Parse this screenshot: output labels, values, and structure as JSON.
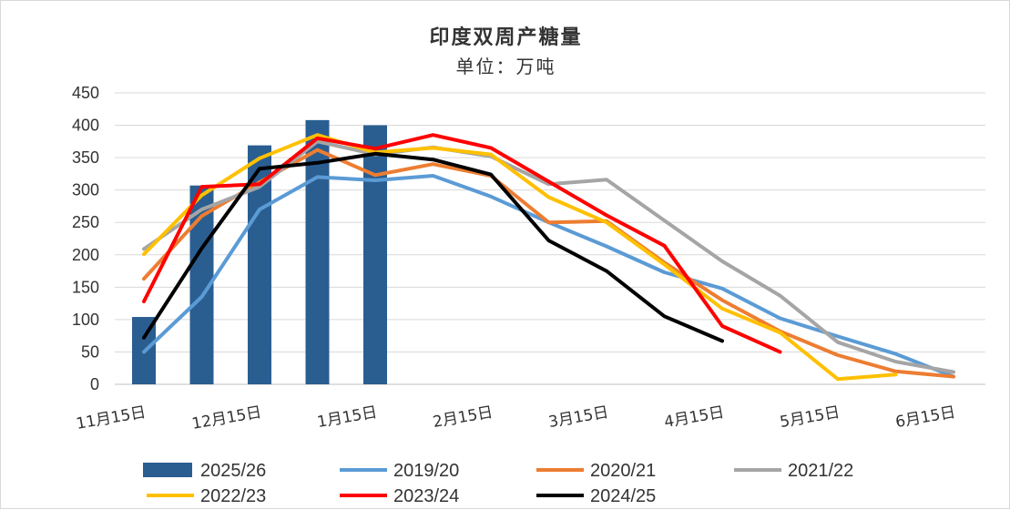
{
  "chart_data": {
    "type": "bar+line",
    "title": "印度双周产糖量",
    "subtitle": "单位：万吨",
    "ylim": [
      0,
      450
    ],
    "yticks": [
      0,
      50,
      100,
      150,
      200,
      250,
      300,
      350,
      400,
      450
    ],
    "grid": true,
    "x_labels": [
      "11月15日",
      "12月15日",
      "1月15日",
      "2月15日",
      "3月15日",
      "4月15日",
      "5月15日",
      "6月15日"
    ],
    "legend_position": "bottom",
    "bar_series": {
      "name": "2025/26",
      "color": "#2a5e91",
      "values": [
        104,
        307,
        369,
        408,
        400
      ]
    },
    "line_series": [
      {
        "name": "2019/20",
        "color": "#5b9bd5",
        "values": [
          50,
          135,
          270,
          320,
          315,
          322,
          290,
          250,
          213,
          173,
          148,
          102,
          74,
          47,
          12
        ]
      },
      {
        "name": "2020/21",
        "color": "#ed7d31",
        "values": [
          163,
          260,
          312,
          362,
          323,
          340,
          322,
          250,
          252,
          188,
          130,
          82,
          45,
          20,
          12
        ]
      },
      {
        "name": "2021/22",
        "color": "#a5a5a5",
        "values": [
          209,
          270,
          305,
          375,
          355,
          366,
          352,
          309,
          316,
          253,
          190,
          137,
          65,
          35,
          19
        ]
      },
      {
        "name": "2022/23",
        "color": "#ffc000",
        "values": [
          201,
          292,
          349,
          385,
          358,
          365,
          355,
          289,
          250,
          185,
          117,
          80,
          8,
          15,
          null
        ]
      },
      {
        "name": "2023/24",
        "color": "#ff0000",
        "values": [
          128,
          305,
          309,
          380,
          364,
          385,
          365,
          313,
          261,
          214,
          90,
          50,
          null,
          null,
          null
        ]
      },
      {
        "name": "2024/25",
        "color": "#000000",
        "values": [
          72,
          210,
          333,
          342,
          356,
          347,
          324,
          222,
          175,
          105,
          67,
          null,
          null,
          null,
          null
        ]
      }
    ],
    "legend_order": [
      "2025/26",
      "2019/20",
      "2020/21",
      "2021/22",
      "2022/23",
      "2023/24",
      "2024/25"
    ]
  }
}
